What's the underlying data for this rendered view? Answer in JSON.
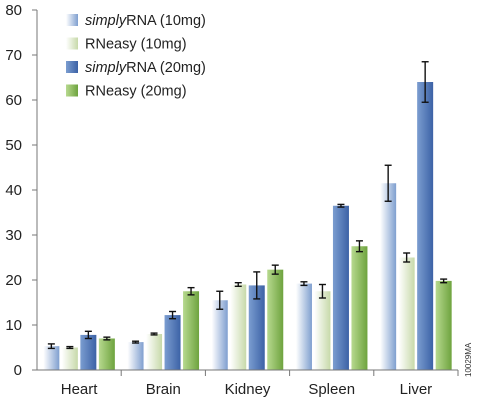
{
  "chart_data": {
    "type": "bar",
    "categories": [
      "Heart",
      "Brain",
      "Kidney",
      "Spleen",
      "Liver"
    ],
    "ylim": [
      0,
      80
    ],
    "yticks": [
      0,
      10,
      20,
      30,
      40,
      50,
      60,
      70,
      80
    ],
    "grid": false,
    "legend_position": "top-left",
    "side_label": "10029MA",
    "series": [
      {
        "name_prefix": "simply",
        "name_suffix": "RNA (10mg)",
        "color_light": "#ffffff",
        "color_dark": "#7f9fcf",
        "values": [
          5.3,
          6.2,
          15.5,
          19.2,
          41.5
        ],
        "errors": [
          0.5,
          0.2,
          2.0,
          0.4,
          4.0
        ]
      },
      {
        "name_prefix": "",
        "name_suffix": "RNeasy (10mg)",
        "color_light": "#ffffff",
        "color_dark": "#c7d9a9",
        "values": [
          5.0,
          8.0,
          19.0,
          17.5,
          25.0
        ],
        "errors": [
          0.2,
          0.2,
          0.4,
          1.5,
          1.0
        ]
      },
      {
        "name_prefix": "simply",
        "name_suffix": "RNA (20mg)",
        "color_light": "#7b9dd0",
        "color_dark": "#3c62a6",
        "values": [
          7.8,
          12.2,
          18.8,
          36.5,
          64.0
        ],
        "errors": [
          0.8,
          0.8,
          3.0,
          0.3,
          4.5
        ]
      },
      {
        "name_prefix": "",
        "name_suffix": "RNeasy (20mg)",
        "color_light": "#b7d98f",
        "color_dark": "#6ea33e",
        "values": [
          7.0,
          17.5,
          22.3,
          27.5,
          19.8
        ],
        "errors": [
          0.3,
          0.8,
          1.0,
          1.2,
          0.4
        ]
      }
    ]
  }
}
